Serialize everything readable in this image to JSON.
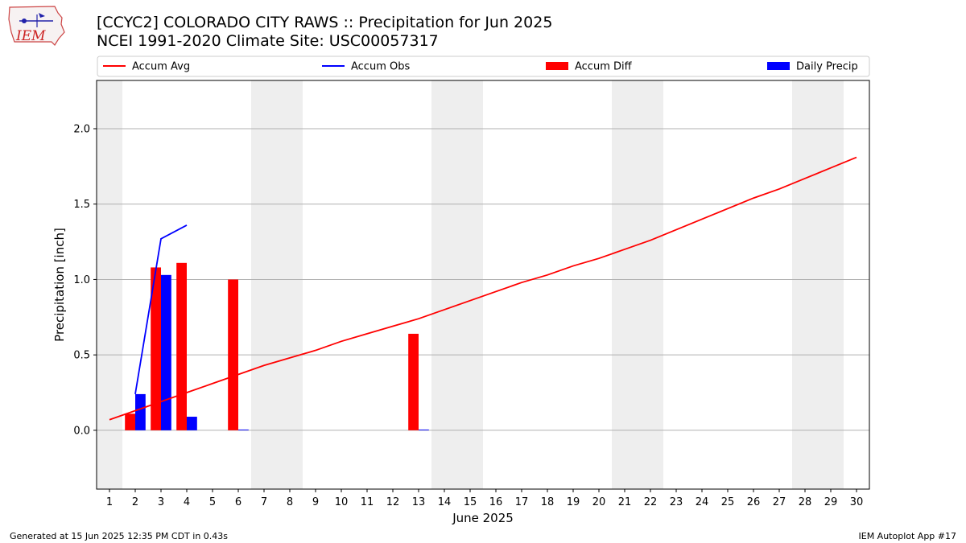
{
  "header": {
    "title_line1": "[CCYC2] COLORADO CITY RAWS :: Precipitation for Jun 2025",
    "title_line2": "NCEI 1991-2020 Climate Site: USC00057317",
    "logo_text": "IEM"
  },
  "footer": {
    "generated": "Generated at 15 Jun 2025 12:35 PM CDT in 0.43s",
    "app": "IEM Autoplot App #17"
  },
  "colors": {
    "avg": "#ff0000",
    "obs": "#0000ff",
    "diff": "#ff0000",
    "daily": "#0000ff",
    "weekend_shade": "#eeeeee",
    "grid": "#b0b0b0"
  },
  "chart_data": {
    "type": "bar",
    "xlabel": "June 2025",
    "ylabel": "Precipitation [inch]",
    "xlim": [
      0.5,
      30.5
    ],
    "ylim": [
      -0.39,
      2.32
    ],
    "x_ticks": [
      1,
      2,
      3,
      4,
      5,
      6,
      7,
      8,
      9,
      10,
      11,
      12,
      13,
      14,
      15,
      16,
      17,
      18,
      19,
      20,
      21,
      22,
      23,
      24,
      25,
      26,
      27,
      28,
      29,
      30
    ],
    "y_ticks": [
      0.0,
      0.5,
      1.0,
      1.5,
      2.0
    ],
    "y_tick_labels": [
      "0.0",
      "0.5",
      "1.0",
      "1.5",
      "2.0"
    ],
    "grid": "horizontal",
    "legend_position": "top",
    "weekend_days": [
      1,
      7,
      8,
      14,
      15,
      21,
      22,
      28,
      29
    ],
    "series": [
      {
        "name": "Accum Avg",
        "kind": "line",
        "x": [
          1,
          2,
          3,
          4,
          5,
          6,
          7,
          8,
          9,
          10,
          11,
          12,
          13,
          14,
          15,
          16,
          17,
          18,
          19,
          20,
          21,
          22,
          23,
          24,
          25,
          26,
          27,
          28,
          29,
          30
        ],
        "values": [
          0.07,
          0.13,
          0.19,
          0.25,
          0.31,
          0.37,
          0.43,
          0.48,
          0.53,
          0.59,
          0.64,
          0.69,
          0.74,
          0.8,
          0.86,
          0.92,
          0.98,
          1.03,
          1.09,
          1.14,
          1.2,
          1.26,
          1.33,
          1.4,
          1.47,
          1.54,
          1.6,
          1.67,
          1.74,
          1.81
        ]
      },
      {
        "name": "Accum Obs",
        "kind": "line",
        "x": [
          2,
          3,
          4
        ],
        "values": [
          0.24,
          1.27,
          1.36
        ]
      },
      {
        "name": "Accum Diff",
        "kind": "bar",
        "x": [
          2,
          3,
          4,
          6,
          13
        ],
        "values": [
          0.11,
          1.08,
          1.11,
          1.0,
          0.64
        ]
      },
      {
        "name": "Daily Precip",
        "kind": "bar",
        "x": [
          2,
          3,
          4,
          6,
          13
        ],
        "values": [
          0.24,
          1.03,
          0.09,
          0.005,
          0.005
        ]
      }
    ]
  }
}
